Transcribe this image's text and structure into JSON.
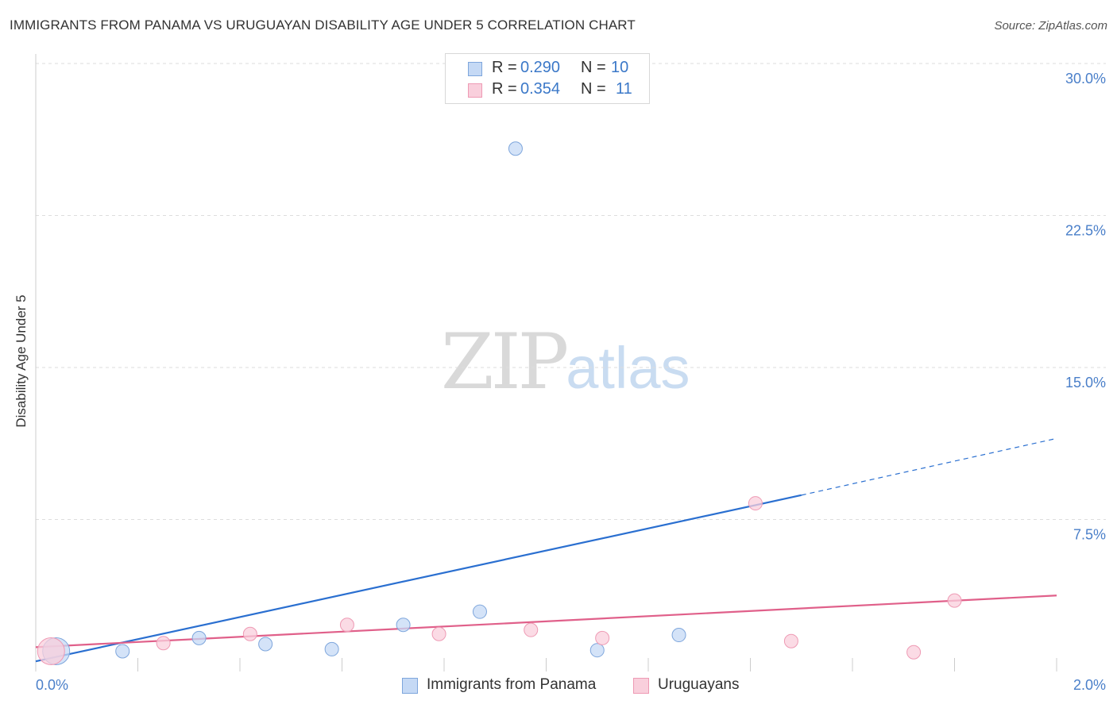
{
  "header": {
    "title": "IMMIGRANTS FROM PANAMA VS URUGUAYAN DISABILITY AGE UNDER 5 CORRELATION CHART",
    "source": "Source: ZipAtlas.com"
  },
  "watermark": {
    "zip": "ZIP",
    "atlas": "atlas"
  },
  "legend_top": {
    "rows": [
      {
        "r_label": "R =",
        "r_value": "0.290",
        "n_label": "N =",
        "n_value": "10"
      },
      {
        "r_label": "R =",
        "r_value": "0.354",
        "n_label": "N =",
        "n_value": "11"
      }
    ]
  },
  "legend_bottom": {
    "items": [
      {
        "label": "Immigrants from Panama"
      },
      {
        "label": "Uruguayans"
      }
    ]
  },
  "colors": {
    "blue_fill": "#c5d9f5",
    "blue_stroke": "#7ea6dc",
    "blue_line": "#2a6fd0",
    "pink_fill": "#f9cfdc",
    "pink_stroke": "#ee9ab4",
    "pink_line": "#e0608a",
    "grid": "#dddddd",
    "tick_label": "#4a7fc9"
  },
  "chart_data": {
    "type": "scatter",
    "title": "IMMIGRANTS FROM PANAMA VS URUGUAYAN DISABILITY AGE UNDER 5 CORRELATION CHART",
    "xlabel": "",
    "ylabel": "Disability Age Under 5",
    "xlim": [
      0,
      2.0
    ],
    "ylim": [
      0,
      30.0
    ],
    "x_tick_labels": [
      "0.0%",
      "2.0%"
    ],
    "y_ticks": [
      {
        "value": 7.5,
        "label": "7.5%"
      },
      {
        "value": 15.0,
        "label": "15.0%"
      },
      {
        "value": 22.5,
        "label": "22.5%"
      },
      {
        "value": 30.0,
        "label": "30.0%"
      }
    ],
    "series": [
      {
        "name": "Immigrants from Panama",
        "color": "blue",
        "points": [
          {
            "x": 0.04,
            "y": 1.0,
            "big": true
          },
          {
            "x": 0.17,
            "y": 1.0
          },
          {
            "x": 0.32,
            "y": 1.65
          },
          {
            "x": 0.45,
            "y": 1.35
          },
          {
            "x": 0.58,
            "y": 1.1
          },
          {
            "x": 0.72,
            "y": 2.3
          },
          {
            "x": 0.87,
            "y": 2.95
          },
          {
            "x": 0.94,
            "y": 25.8
          },
          {
            "x": 1.1,
            "y": 1.05
          },
          {
            "x": 1.26,
            "y": 1.8
          }
        ],
        "trend": {
          "x0": 0.0,
          "y0": 0.5,
          "x1": 1.5,
          "y1": 8.7,
          "dash_x1": 2.0,
          "dash_y1": 11.5
        }
      },
      {
        "name": "Uruguayans",
        "color": "pink",
        "points": [
          {
            "x": 0.03,
            "y": 1.0,
            "big": true
          },
          {
            "x": 0.25,
            "y": 1.4
          },
          {
            "x": 0.42,
            "y": 1.85
          },
          {
            "x": 0.61,
            "y": 2.3
          },
          {
            "x": 0.79,
            "y": 1.85
          },
          {
            "x": 0.97,
            "y": 2.05
          },
          {
            "x": 1.11,
            "y": 1.65
          },
          {
            "x": 1.41,
            "y": 8.3
          },
          {
            "x": 1.48,
            "y": 1.5
          },
          {
            "x": 1.72,
            "y": 0.95
          },
          {
            "x": 1.8,
            "y": 3.5
          }
        ],
        "trend": {
          "x0": 0.0,
          "y0": 1.2,
          "x1": 2.0,
          "y1": 3.75
        }
      }
    ]
  }
}
